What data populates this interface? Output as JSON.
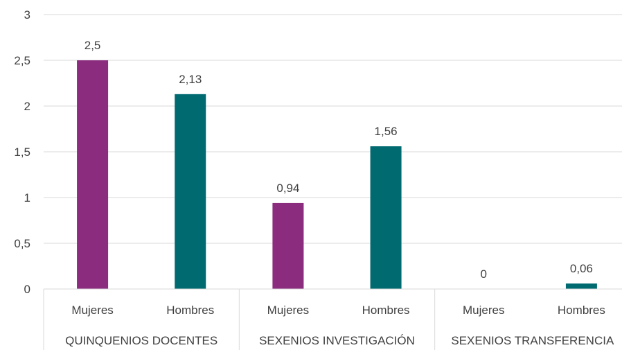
{
  "chart_data": {
    "type": "bar",
    "title": "",
    "xlabel": "",
    "ylabel": "",
    "ylim": [
      0,
      3
    ],
    "yticks": [
      0,
      0.5,
      1,
      1.5,
      2,
      2.5,
      3
    ],
    "ytick_labels": [
      "0",
      "0,5",
      "1",
      "1,5",
      "2",
      "2,5",
      "3"
    ],
    "grid": true,
    "legend": "none",
    "groups": [
      {
        "label": "QUINQUENIOS DOCENTES",
        "bars": [
          {
            "category": "Mujeres",
            "value": 2.5,
            "label": "2,5",
            "color": "#8B2C7E"
          },
          {
            "category": "Hombres",
            "value": 2.13,
            "label": "2,13",
            "color": "#006A71"
          }
        ]
      },
      {
        "label": "SEXENIOS INVESTIGACIÓN",
        "bars": [
          {
            "category": "Mujeres",
            "value": 0.94,
            "label": "0,94",
            "color": "#8B2C7E"
          },
          {
            "category": "Hombres",
            "value": 1.56,
            "label": "1,56",
            "color": "#006A71"
          }
        ]
      },
      {
        "label": "SEXENIOS TRANSFERENCIA",
        "bars": [
          {
            "category": "Mujeres",
            "value": 0,
            "label": "0",
            "color": "#8B2C7E"
          },
          {
            "category": "Hombres",
            "value": 0.06,
            "label": "0,06",
            "color": "#006A71"
          }
        ]
      }
    ]
  }
}
